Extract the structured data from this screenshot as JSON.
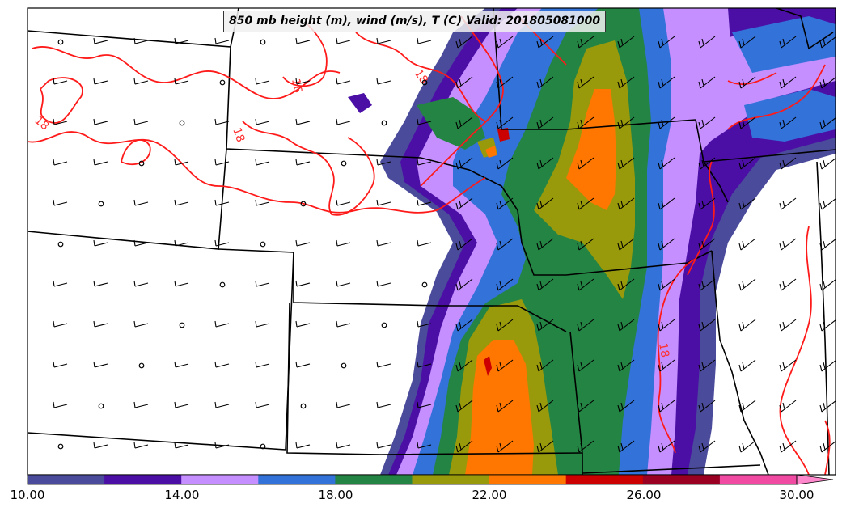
{
  "map": {
    "title": "850 mb height (m), wind (m/s), T (C) Valid: 201805081000"
  },
  "colorbar": {
    "colors": [
      "#4b4b9b",
      "#4b0fa6",
      "#c58fff",
      "#3372d9",
      "#248444",
      "#999a0b",
      "#ff7700",
      "#cc0000",
      "#990022",
      "#f04aa3"
    ],
    "extend_color": "#ff88cc",
    "tick_labels": [
      "10.00",
      "14.00",
      "18.00",
      "22.00",
      "26.00",
      "30.00"
    ]
  },
  "contour_labels": [
    "18",
    "18",
    "16",
    "18",
    "18"
  ]
}
